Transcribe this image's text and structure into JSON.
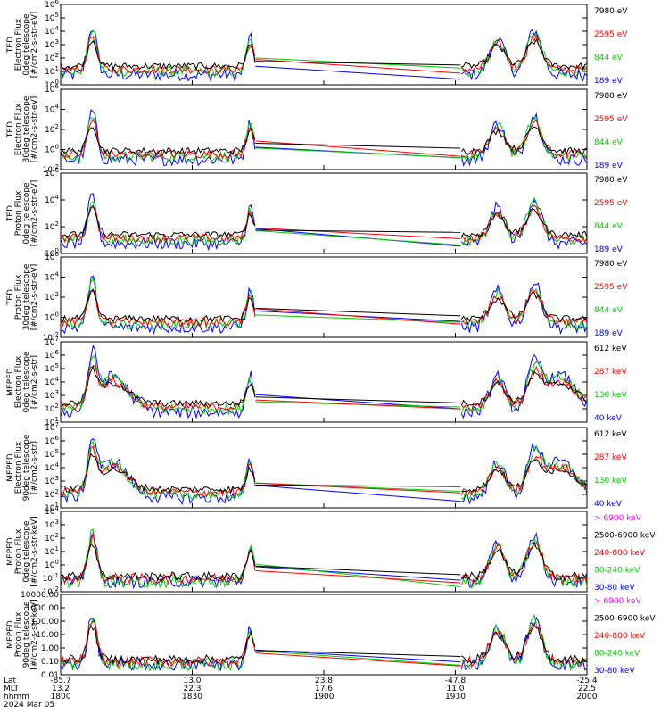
{
  "colors": {
    "blue": "#0000ff",
    "red": "#ff0000",
    "green": "#00cc00",
    "black": "#000000",
    "magenta": "#ff00ff"
  },
  "chart_data": [
    {
      "type": "line",
      "ylabel": [
        "TED",
        "Electron Flux",
        "0deg telescope",
        "[#/cm2-s-str-eV]"
      ],
      "ytick_labels": [
        "10^0",
        "10^1",
        "10^2",
        "10^3",
        "10^4",
        "10^5",
        "10^6"
      ],
      "series": [
        {
          "name": "7980 eV",
          "color": "black"
        },
        {
          "name": "2595 eV",
          "color": "red"
        },
        {
          "name": "844 eV",
          "color": "green"
        },
        {
          "name": "189 eV",
          "color": "blue"
        }
      ]
    },
    {
      "type": "line",
      "ylabel": [
        "TED",
        "Electron Flux",
        "30deg telescope",
        "[#/cm2-s-str-eV]"
      ],
      "ytick_labels": [
        "10^-2",
        "10^0",
        "10^2",
        "10^4",
        "10^6"
      ],
      "series": [
        {
          "name": "7980 eV",
          "color": "black"
        },
        {
          "name": "2595 eV",
          "color": "red"
        },
        {
          "name": "844 eV",
          "color": "green"
        },
        {
          "name": "189 eV",
          "color": "blue"
        }
      ]
    },
    {
      "type": "line",
      "ylabel": [
        "TED",
        "Proton Flux",
        "0deg telescope",
        "[#/cm2-s-str-eV]"
      ],
      "ytick_labels": [
        "10^0",
        "10^2",
        "10^4",
        "10^6"
      ],
      "series": [
        {
          "name": "7980 eV",
          "color": "black"
        },
        {
          "name": "2595 eV",
          "color": "red"
        },
        {
          "name": "844 eV",
          "color": "green"
        },
        {
          "name": "189 eV",
          "color": "blue"
        }
      ]
    },
    {
      "type": "line",
      "ylabel": [
        "TED",
        "Proton Flux",
        "30deg telescope",
        "[#/cm2-s-str-eV]"
      ],
      "ytick_labels": [
        "10^-2",
        "10^0",
        "10^2",
        "10^4",
        "10^6"
      ],
      "series": [
        {
          "name": "7980 eV",
          "color": "black"
        },
        {
          "name": "2595 eV",
          "color": "red"
        },
        {
          "name": "844 eV",
          "color": "green"
        },
        {
          "name": "189 eV",
          "color": "blue"
        }
      ]
    },
    {
      "type": "line",
      "ylabel": [
        "MEPED",
        "Electron Flux",
        "0deg telescope",
        "[#/cm2-s-str]"
      ],
      "ytick_labels": [
        "10^1",
        "10^2",
        "10^3",
        "10^4",
        "10^5",
        "10^6",
        "10^7"
      ],
      "series": [
        {
          "name": "612 keV",
          "color": "black"
        },
        {
          "name": "287 keV",
          "color": "red"
        },
        {
          "name": "130 keV",
          "color": "green"
        },
        {
          "name": "40 keV",
          "color": "blue"
        }
      ]
    },
    {
      "type": "line",
      "ylabel": [
        "MEPED",
        "Electron Flux",
        "90deg telescope",
        "[#/cm2-s-str]"
      ],
      "ytick_labels": [
        "10^1",
        "10^2",
        "10^3",
        "10^4",
        "10^5",
        "10^6",
        "10^7"
      ],
      "series": [
        {
          "name": "612 keV",
          "color": "black"
        },
        {
          "name": "287 keV",
          "color": "red"
        },
        {
          "name": "130 keV",
          "color": "green"
        },
        {
          "name": "40 keV",
          "color": "blue"
        }
      ]
    },
    {
      "type": "line",
      "ylabel": [
        "MEPED",
        "Proton Flux",
        "0deg telescope",
        "[#/cm2-s-str-keV]"
      ],
      "ytick_labels": [
        "10^-2",
        "10^-1",
        "10^0",
        "10^1",
        "10^2",
        "10^3",
        "10^4"
      ],
      "series": [
        {
          "name": "> 6900 keV",
          "color": "magenta"
        },
        {
          "name": "2500-6900 keV",
          "color": "black"
        },
        {
          "name": "240-800 keV",
          "color": "red"
        },
        {
          "name": "80-240 keV",
          "color": "green"
        },
        {
          "name": "30-80 keV",
          "color": "blue"
        }
      ]
    },
    {
      "type": "line",
      "ylabel": [
        "MEPED",
        "Proton Flux",
        "90deg telescope",
        "[#/cm2-s-str-keV]"
      ],
      "ytick_labels": [
        "0.01",
        "0.10",
        "1.00",
        "10.00",
        "100.00",
        "1000.00",
        "10000.00"
      ],
      "series": [
        {
          "name": "> 6900 keV",
          "color": "magenta"
        },
        {
          "name": "2500-6900 keV",
          "color": "black"
        },
        {
          "name": "240-800 keV",
          "color": "red"
        },
        {
          "name": "80-240 keV",
          "color": "green"
        },
        {
          "name": "30-80 keV",
          "color": "blue"
        }
      ]
    }
  ],
  "x_axis": {
    "row_labels": [
      "Lat",
      "MLT",
      "hhmm"
    ],
    "date": "2024 Mar 05",
    "ticks": [
      {
        "lat": "-85.7",
        "mlt": "13.2",
        "hhmm": "1800"
      },
      {
        "lat": "13.0",
        "mlt": "22.3",
        "hhmm": "1830"
      },
      {
        "lat": "23.8",
        "mlt": "17.6",
        "hhmm": "1900"
      },
      {
        "lat": "-47.8",
        "mlt": "11.0",
        "hhmm": "1930"
      },
      {
        "lat": "-25.4",
        "mlt": "22.5",
        "hhmm": "2000"
      }
    ]
  }
}
